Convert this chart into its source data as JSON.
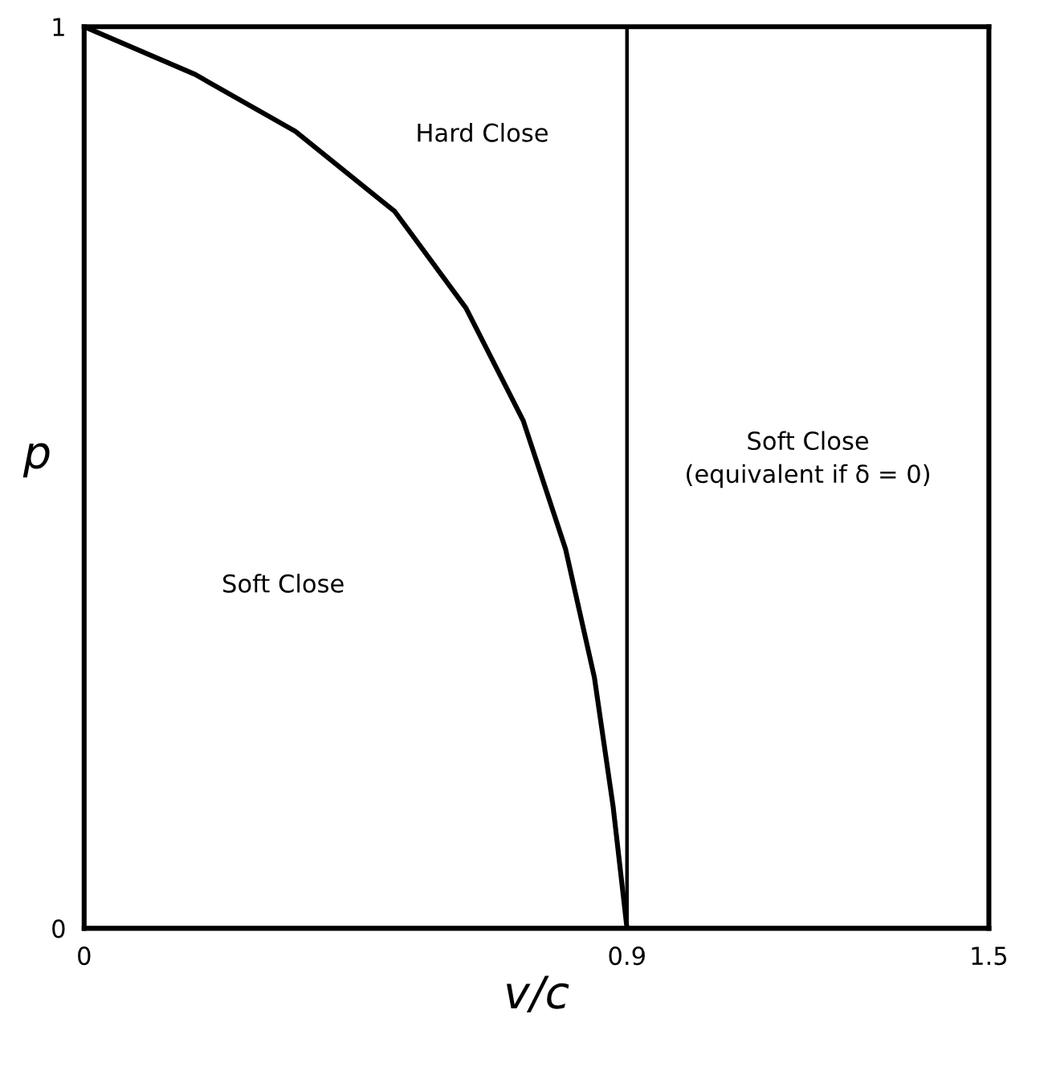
{
  "chart_data": {
    "type": "line",
    "xlabel": "v/c",
    "ylabel": "p",
    "series": [
      {
        "color": "#000000",
        "x": [
          0,
          0.184,
          0.35,
          0.515,
          0.633,
          0.728,
          0.798,
          0.846,
          0.877,
          0.9
        ],
        "values": [
          1,
          0.947,
          0.884,
          0.795,
          0.688,
          0.563,
          0.421,
          0.278,
          0.135,
          0
        ]
      }
    ],
    "xlim": [
      0,
      1.5
    ],
    "xticks": [
      0,
      0.9,
      1.5
    ],
    "ylim": [
      0,
      1
    ],
    "yticks": [
      0,
      1
    ],
    "ref_lines": [
      {
        "axis": "x",
        "value": 0.9,
        "color": "#000000"
      }
    ],
    "annotations": [
      "Hard Close",
      "Soft Close",
      "Soft Close\n(equivalent if δ = 0)"
    ],
    "legend": false,
    "marker": "none",
    "line_style": "solid"
  }
}
